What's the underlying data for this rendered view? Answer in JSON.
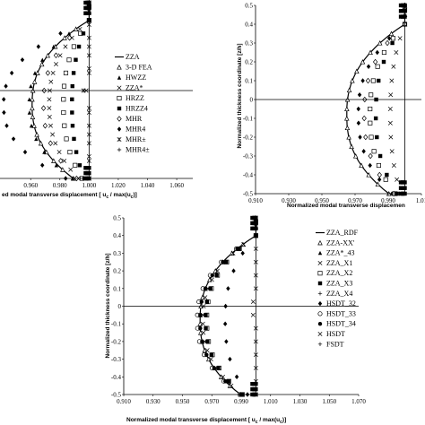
{
  "chart_data": [
    {
      "type": "scatter",
      "panel": "top-left",
      "xlabel": "ed modal transverse displacement [ u",
      "xlabel_sub": "c",
      "xlabel_rest": " / max(u",
      "xlabel_sub2": "c",
      "xlabel_end": ")]",
      "x_ticks": [
        "0.960",
        "0.980",
        "1.000",
        "1.020",
        "1.040",
        "1.060"
      ],
      "x_tick_values": [
        0.96,
        0.98,
        1.0,
        1.02,
        1.04,
        1.06
      ],
      "xlim": [
        0.939,
        1.071
      ],
      "ylim": [
        -0.5,
        0.5
      ],
      "grid": false,
      "legend_position": "right",
      "legend": [
        "ZZA",
        "3-D FEA",
        "HWZZ",
        "ZZA*",
        "HRZZ",
        "HRZZ4",
        "MHR",
        "MHR4",
        "MHR±",
        "MHR4±"
      ]
    },
    {
      "type": "scatter",
      "panel": "top-right",
      "ylabel": "Normalized thickness coordinate [z/h]",
      "xlabel": "Normalized modal transverse displacemen",
      "x_ticks": [
        "0.910",
        "0.930",
        "0.950",
        "0.970",
        "0.990",
        "1.01"
      ],
      "x_tick_values": [
        0.91,
        0.93,
        0.95,
        0.97,
        0.99,
        1.01
      ],
      "y_ticks": [
        "0.5",
        "0.4",
        "0.3",
        "0.2",
        "0.1",
        "0",
        "-0.1",
        "-0.2",
        "-0.3",
        "-0.4",
        "-0.5"
      ],
      "xlim": [
        0.91,
        1.01
      ],
      "ylim": [
        -0.5,
        0.5
      ],
      "grid": false
    },
    {
      "type": "scatter",
      "panel": "bottom",
      "ylabel": "Normalized thickness coordinate [z/h]",
      "xlabel": "Normalized modal transverse displacement [ u",
      "xlabel_sub": "c",
      "xlabel_rest": " / max(u",
      "xlabel_sub2": "c",
      "xlabel_end": ")]",
      "x_ticks": [
        "0.910",
        "0.930",
        "0.950",
        "0.970",
        "0.990",
        "1.010",
        "1.030",
        "1.050",
        "1.070"
      ],
      "x_tick_values": [
        0.91,
        0.93,
        0.95,
        0.97,
        0.99,
        1.01,
        1.03,
        1.05,
        1.07
      ],
      "y_ticks": [
        "0.5",
        "0.4",
        "0.3",
        "0.2",
        "0.1",
        "0",
        "-0.1",
        "-0.2",
        "-0.3",
        "-0.4",
        "-0.5"
      ],
      "xlim": [
        0.91,
        1.07
      ],
      "ylim": [
        -0.5,
        0.5
      ],
      "grid": false,
      "legend_position": "right",
      "legend": [
        "ZZA_RDF",
        "ZZA-XX'",
        "ZZA*_43",
        "ZZA_X1",
        "ZZA_X2",
        "ZZA_X3",
        "ZZA_X4",
        "HSDT_32",
        "HSDT_33",
        "HSDT_34",
        "HSDT",
        "FSDT"
      ]
    }
  ]
}
